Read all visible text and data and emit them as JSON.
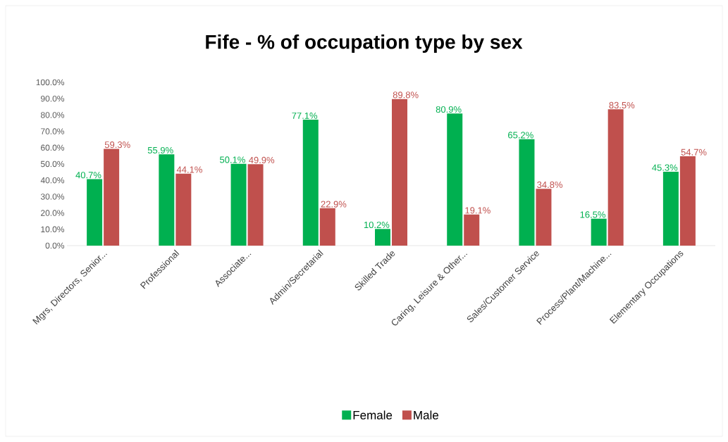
{
  "chart_data": {
    "type": "bar",
    "title": "Fife - % of occupation type by sex",
    "categories": [
      "Mgrs, Directors, Senior...",
      "Professional",
      "Associate...",
      "Admin/Secretarial",
      "Skilled Trade",
      "Caring, Leisure & Other...",
      "Sales/Customer Service",
      "Process/Plant/Machine...",
      "Elementary Occupations"
    ],
    "series": [
      {
        "name": "Female",
        "color": "#00b050",
        "values": [
          40.7,
          55.9,
          50.1,
          77.1,
          10.2,
          80.9,
          65.2,
          16.5,
          45.3
        ],
        "value_labels": [
          "40.7%",
          "55.9%",
          "50.1%",
          "77.1%",
          "10.2%",
          "80.9%",
          "65.2%",
          "16.5%",
          "45.3%"
        ]
      },
      {
        "name": "Male",
        "color": "#c0504d",
        "values": [
          59.3,
          44.1,
          49.9,
          22.9,
          89.8,
          19.1,
          34.8,
          83.5,
          54.7
        ],
        "value_labels": [
          "59.3%",
          "44.1%",
          "49.9%",
          "22.9%",
          "89.8%",
          "19.1%",
          "34.8%",
          "83.5%",
          "54.7%"
        ]
      }
    ],
    "ylim": [
      0,
      100
    ],
    "yticks": [
      {
        "value": 0,
        "label": "0.0%"
      },
      {
        "value": 10,
        "label": "10.0%"
      },
      {
        "value": 20,
        "label": "20.0%"
      },
      {
        "value": 30,
        "label": "30.0%"
      },
      {
        "value": 40,
        "label": "40.0%"
      },
      {
        "value": 50,
        "label": "50.0%"
      },
      {
        "value": 60,
        "label": "60.0%"
      },
      {
        "value": 70,
        "label": "70.0%"
      },
      {
        "value": 80,
        "label": "80.0%"
      },
      {
        "value": 90,
        "label": "90.0%"
      },
      {
        "value": 100,
        "label": "100.0%"
      }
    ],
    "legend": "bottom"
  }
}
